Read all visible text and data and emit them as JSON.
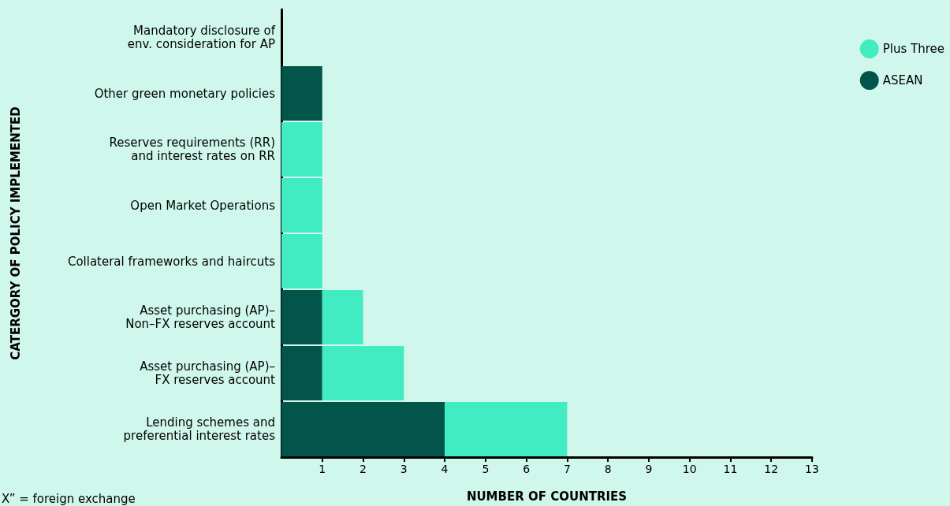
{
  "chart_data": {
    "type": "bar",
    "orientation": "horizontal",
    "stacked": true,
    "xlabel": "NUMBER OF COUNTRIES",
    "ylabel": "CATERGORY OF POLICY IMPLEMENTED",
    "categories": [
      "Mandatory disclosure of\nenv. consideration for AP",
      "Other green monetary policies",
      "Reserves requirements (RR)\nand interest rates on RR",
      "Open Market Operations",
      "Collateral frameworks and haircuts",
      "Asset purchasing (AP)–\nNon–FX reserves account",
      "Asset purchasing (AP)–\nFX reserves account",
      "Lending schemes and\npreferential interest rates"
    ],
    "series": [
      {
        "name": "ASEAN",
        "color": "#03544a",
        "values": [
          0,
          1,
          0,
          0,
          0,
          1,
          1,
          4
        ]
      },
      {
        "name": "Plus Three",
        "color": "#41ecc3",
        "values": [
          0,
          0,
          1,
          1,
          1,
          1,
          2,
          3
        ]
      }
    ],
    "xlim": [
      0,
      13
    ],
    "xticks": [
      1,
      2,
      3,
      4,
      5,
      6,
      7,
      8,
      9,
      10,
      11,
      12,
      13
    ],
    "grid": false,
    "legend": "top right",
    "annotations": [
      "X” = foreign exchange"
    ]
  }
}
